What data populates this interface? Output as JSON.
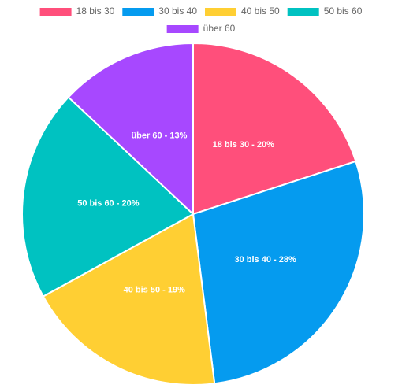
{
  "chart_data": {
    "type": "pie",
    "categories": [
      "18 bis 30",
      "30 bis 40",
      "40 bis 50",
      "50 bis 60",
      "über 60"
    ],
    "values": [
      20,
      28,
      19,
      20,
      13
    ],
    "value_labels": [
      "18 bis 30 - 20%",
      "30 bis 40 - 28%",
      "40 bis 50 - 19%",
      "50 bis 60 - 20%",
      "über 60 - 13%"
    ],
    "colors": [
      "#ff4f7b",
      "#059bef",
      "#ffcf33",
      "#00c2c1",
      "#a748ff"
    ],
    "legend": "top"
  }
}
